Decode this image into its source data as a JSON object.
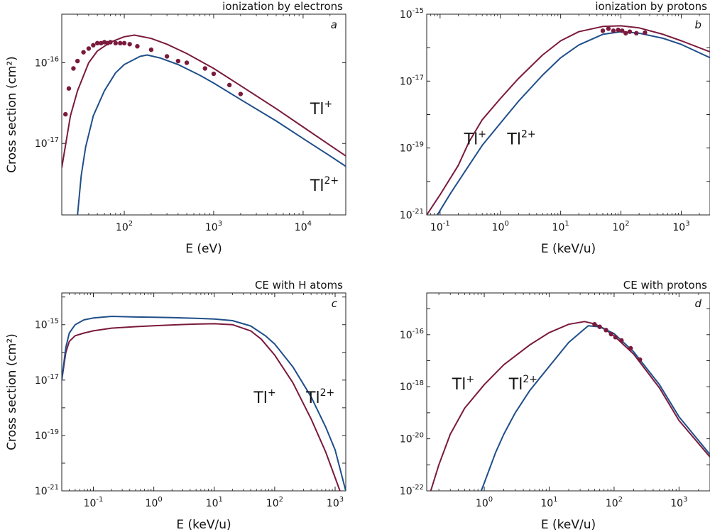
{
  "colors": {
    "tl1": "#7a1a3c",
    "tl2": "#1f4f8a",
    "points": "#7a1a3c"
  },
  "chart_data": [
    {
      "type": "line",
      "panel": "a",
      "title": "ionization by electrons",
      "xlabel": "E (eV)",
      "ylabel": "Cross section (cm²)",
      "x_scale": "log",
      "y_scale": "log",
      "xlim": [
        20,
        30000
      ],
      "ylim": [
        1.3e-18,
        4e-16
      ],
      "x_ticks": [
        {
          "v": 100,
          "m": "10",
          "e": "2"
        },
        {
          "v": 1000,
          "m": "10",
          "e": "3"
        },
        {
          "v": 10000,
          "m": "10",
          "e": "4"
        }
      ],
      "y_ticks": [
        {
          "v": 1e-16,
          "m": "10",
          "e": "-16"
        },
        {
          "v": 1e-17,
          "m": "10",
          "e": "-17"
        }
      ],
      "series": [
        {
          "name": "Tl+",
          "color_key": "tl1",
          "x": [
            20,
            25,
            30,
            40,
            50,
            70,
            100,
            130,
            200,
            300,
            500,
            1000,
            2000,
            5000,
            10000,
            20000,
            30000
          ],
          "y": [
            5e-18,
            2.2e-17,
            4.5e-17,
            1e-16,
            1.4e-16,
            1.8e-16,
            2.1e-16,
            2.2e-16,
            2e-16,
            1.7e-16,
            1.3e-16,
            8.5e-17,
            5.2e-17,
            2.7e-17,
            1.6e-17,
            9.5e-18,
            7e-18
          ]
        },
        {
          "name": "Tl2+",
          "color_key": "tl2",
          "x": [
            30,
            33,
            37,
            45,
            60,
            80,
            100,
            150,
            180,
            250,
            400,
            700,
            1000,
            2000,
            5000,
            10000,
            20000,
            30000
          ],
          "y": [
            1.3e-18,
            4e-18,
            9e-18,
            2.2e-17,
            4.5e-17,
            7.5e-17,
            9.5e-17,
            1.2e-16,
            1.25e-16,
            1.15e-16,
            9.5e-17,
            7e-17,
            5.6e-17,
            3.5e-17,
            1.9e-17,
            1.15e-17,
            7e-18,
            5.2e-18
          ]
        }
      ],
      "points": {
        "x": [
          22,
          24,
          27,
          30,
          35,
          40,
          45,
          50,
          55,
          60,
          65,
          70,
          80,
          90,
          100,
          115,
          140,
          200,
          300,
          400,
          500,
          800,
          1000,
          1500,
          2000
        ],
        "y": [
          2.3e-17,
          4.8e-17,
          8.5e-17,
          1.05e-16,
          1.35e-16,
          1.5e-16,
          1.65e-16,
          1.75e-16,
          1.75e-16,
          1.8e-16,
          1.75e-16,
          1.8e-16,
          1.75e-16,
          1.75e-16,
          1.75e-16,
          1.7e-16,
          1.6e-16,
          1.45e-16,
          1.2e-16,
          1.05e-16,
          1e-16,
          8.5e-17,
          7.3e-17,
          5.3e-17,
          4.1e-17
        ]
      },
      "labels": [
        {
          "base": "Tl",
          "sup": "+",
          "x": 12000,
          "y": 2.3e-17
        },
        {
          "base": "Tl",
          "sup": "2+",
          "x": 12000,
          "y": 2.6e-18
        }
      ]
    },
    {
      "type": "line",
      "panel": "b",
      "title": "ionization by protons",
      "xlabel": "E (keV/u)",
      "ylabel": "",
      "x_scale": "log",
      "y_scale": "log",
      "xlim": [
        0.06,
        3000
      ],
      "ylim": [
        1e-21,
        1e-15
      ],
      "x_ticks": [
        {
          "v": 0.1,
          "m": "10",
          "e": "-1"
        },
        {
          "v": 1,
          "m": "10",
          "e": "0"
        },
        {
          "v": 10,
          "m": "10",
          "e": "1"
        },
        {
          "v": 100,
          "m": "10",
          "e": "2"
        },
        {
          "v": 1000,
          "m": "10",
          "e": "3"
        }
      ],
      "y_ticks": [
        {
          "v": 1e-15,
          "m": "10",
          "e": "-15"
        },
        {
          "v": 1e-17,
          "m": "10",
          "e": "-17"
        },
        {
          "v": 1e-19,
          "m": "10",
          "e": "-19"
        },
        {
          "v": 1e-21,
          "m": "10",
          "e": "-21"
        }
      ],
      "series": [
        {
          "name": "Tl+",
          "color_key": "tl1",
          "x": [
            0.06,
            0.1,
            0.2,
            0.3,
            0.5,
            1,
            2,
            5,
            10,
            20,
            50,
            100,
            200,
            500,
            1000,
            3000
          ],
          "y": [
            1e-21,
            4e-21,
            3e-20,
            1.5e-19,
            7e-19,
            3e-18,
            1.2e-17,
            6e-17,
            1.6e-16,
            3e-16,
            4.3e-16,
            4.5e-16,
            3.9e-16,
            2.5e-16,
            1.6e-16,
            7.5e-17
          ]
        },
        {
          "name": "Tl2+",
          "color_key": "tl2",
          "x": [
            0.09,
            0.15,
            0.3,
            0.5,
            1,
            2,
            5,
            10,
            20,
            50,
            100,
            200,
            500,
            1000,
            3000
          ],
          "y": [
            1e-21,
            4.5e-21,
            3e-20,
            1.2e-19,
            5.5e-19,
            2.5e-18,
            1.5e-17,
            5e-17,
            1.2e-16,
            2.5e-16,
            3e-16,
            2.7e-16,
            1.9e-16,
            1.25e-16,
            5e-17
          ]
        }
      ],
      "points": {
        "x": [
          50,
          62,
          75,
          90,
          105,
          120,
          140,
          180,
          250
        ],
        "y": [
          3.2e-16,
          3.7e-16,
          3.2e-16,
          3.4e-16,
          3.2e-16,
          2.7e-16,
          3e-16,
          2.7e-16,
          2.8e-16
        ]
      },
      "labels": [
        {
          "base": "Tl",
          "sup": "+",
          "x": 0.25,
          "y": 1.3e-19
        },
        {
          "base": "Tl",
          "sup": "2+",
          "x": 1.3,
          "y": 1.3e-19
        }
      ]
    },
    {
      "type": "line",
      "panel": "c",
      "title": "CE with H atoms",
      "xlabel": "E (keV/u)",
      "ylabel": "Cross section (cm²)",
      "x_scale": "log",
      "y_scale": "log",
      "xlim": [
        0.03,
        1500
      ],
      "ylim": [
        1e-21,
        1.4e-14
      ],
      "x_ticks": [
        {
          "v": 0.1,
          "m": "10",
          "e": "-1"
        },
        {
          "v": 1,
          "m": "10",
          "e": "0"
        },
        {
          "v": 10,
          "m": "10",
          "e": "1"
        },
        {
          "v": 100,
          "m": "10",
          "e": "2"
        },
        {
          "v": 1000,
          "m": "10",
          "e": "3"
        }
      ],
      "y_ticks": [
        {
          "v": 1e-15,
          "m": "10",
          "e": "-15"
        },
        {
          "v": 1e-17,
          "m": "10",
          "e": "-17"
        },
        {
          "v": 1e-19,
          "m": "10",
          "e": "-19"
        },
        {
          "v": 1e-21,
          "m": "10",
          "e": "-21"
        }
      ],
      "series": [
        {
          "name": "Tl+",
          "color_key": "tl1",
          "x": [
            0.03,
            0.035,
            0.04,
            0.05,
            0.07,
            0.1,
            0.2,
            0.5,
            1,
            2,
            5,
            10,
            20,
            40,
            60,
            100,
            200,
            400,
            700,
            1000,
            1200
          ],
          "y": [
            1e-17,
            1e-16,
            2.5e-16,
            4e-16,
            5e-16,
            6e-16,
            7.5e-16,
            8.5e-16,
            9.2e-16,
            9.8e-16,
            1.05e-15,
            1.08e-15,
            1e-15,
            6e-16,
            3e-16,
            8e-17,
            8e-18,
            4e-19,
            2.5e-20,
            3e-21,
            1e-21
          ]
        },
        {
          "name": "Tl2+",
          "color_key": "tl2",
          "x": [
            0.03,
            0.035,
            0.04,
            0.05,
            0.07,
            0.1,
            0.2,
            0.5,
            1,
            2,
            5,
            10,
            20,
            40,
            70,
            100,
            200,
            400,
            700,
            1000,
            1500
          ],
          "y": [
            1e-17,
            1.5e-16,
            5e-16,
            1e-15,
            1.5e-15,
            1.75e-15,
            2e-15,
            1.9e-15,
            1.85e-15,
            1.8e-15,
            1.7e-15,
            1.6e-15,
            1.4e-15,
            9e-16,
            4e-16,
            2e-16,
            3e-17,
            2.5e-18,
            2e-19,
            3e-20,
            1e-21
          ]
        }
      ],
      "labels": [
        {
          "base": "Tl",
          "sup": "+",
          "x": 45,
          "y": 1.5e-18
        },
        {
          "base": "Tl",
          "sup": "2+",
          "x": 330,
          "y": 1.5e-18
        }
      ]
    },
    {
      "type": "line",
      "panel": "d",
      "title": "CE with protons",
      "xlabel": "E (keV/u)",
      "ylabel": "",
      "x_scale": "log",
      "y_scale": "log",
      "xlim": [
        0.13,
        3000
      ],
      "ylim": [
        1e-22,
        4e-15
      ],
      "x_ticks": [
        {
          "v": 1,
          "m": "10",
          "e": "0"
        },
        {
          "v": 10,
          "m": "10",
          "e": "1"
        },
        {
          "v": 100,
          "m": "10",
          "e": "2"
        },
        {
          "v": 1000,
          "m": "10",
          "e": "3"
        }
      ],
      "y_ticks": [
        {
          "v": 1e-16,
          "m": "10",
          "e": "-16"
        },
        {
          "v": 1e-18,
          "m": "10",
          "e": "-18"
        },
        {
          "v": 1e-20,
          "m": "10",
          "e": "-20"
        },
        {
          "v": 1e-22,
          "m": "10",
          "e": "-22"
        }
      ],
      "series": [
        {
          "name": "Tl+",
          "color_key": "tl1",
          "x": [
            0.15,
            0.2,
            0.3,
            0.5,
            1,
            2,
            5,
            10,
            20,
            35,
            50,
            70,
            100,
            200,
            500,
            1000,
            3000
          ],
          "y": [
            1e-22,
            1e-21,
            1.5e-20,
            1.5e-19,
            1.2e-18,
            7e-18,
            4e-17,
            1.2e-16,
            2.5e-16,
            3.2e-16,
            2.6e-16,
            1.7e-16,
            9e-17,
            1.8e-17,
            9e-19,
            5e-20,
            2e-21
          ]
        },
        {
          "name": "Tl2+",
          "color_key": "tl2",
          "x": [
            0.9,
            1,
            1.5,
            2,
            3,
            5,
            10,
            20,
            40,
            60,
            100,
            200,
            500,
            1000,
            3000
          ],
          "y": [
            1e-22,
            2e-22,
            3e-21,
            1.5e-20,
            1e-19,
            7e-19,
            6e-18,
            5e-17,
            2.2e-16,
            2e-16,
            1.1e-16,
            2.2e-17,
            1.2e-18,
            7e-20,
            2.5e-21
          ]
        }
      ],
      "points": {
        "x": [
          50,
          60,
          75,
          90,
          105,
          130,
          180,
          250
        ],
        "y": [
          2.5e-16,
          2e-16,
          1.5e-16,
          1.05e-16,
          8e-17,
          6e-17,
          3e-17,
          1.1e-17
        ]
      },
      "labels": [
        {
          "base": "Tl",
          "sup": "+",
          "x": 0.32,
          "y": 8e-19
        },
        {
          "base": "Tl",
          "sup": "2+",
          "x": 2.4,
          "y": 8e-19
        }
      ]
    }
  ]
}
